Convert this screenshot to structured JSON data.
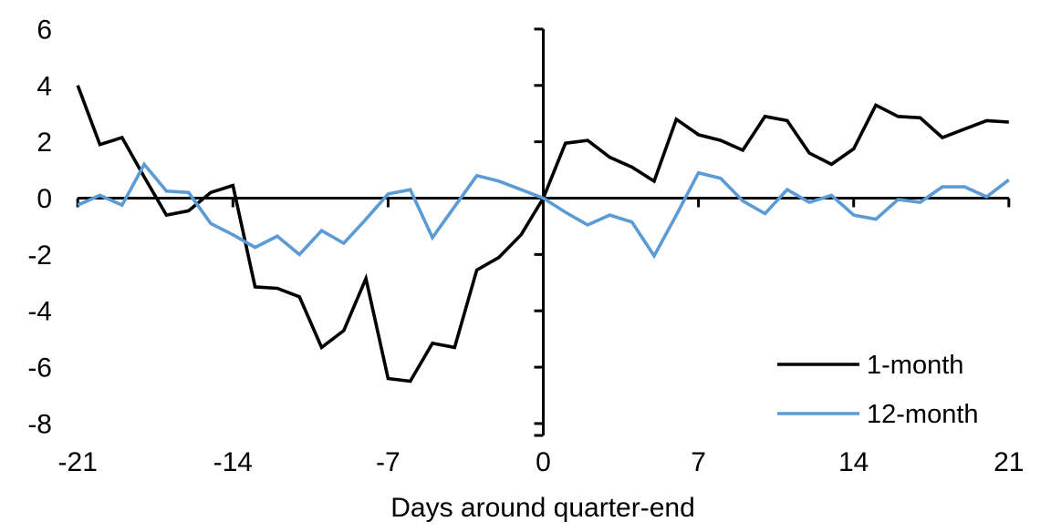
{
  "chart_data": {
    "type": "line",
    "title": "",
    "xlabel": "Days around quarter-end",
    "ylabel": "",
    "grid": false,
    "legend_position": "bottom-right",
    "xlim": [
      -21,
      21
    ],
    "ylim": [
      -8.4,
      6
    ],
    "x_ticks": [
      -21,
      -14,
      -7,
      0,
      7,
      14,
      21
    ],
    "y_ticks": [
      6,
      4,
      2,
      0,
      -2,
      -4,
      -6,
      -8
    ],
    "axis_color": "#000000",
    "x": [
      -21,
      -20,
      -19,
      -18,
      -17,
      -16,
      -15,
      -14,
      -13,
      -12,
      -11,
      -10,
      -9,
      -8,
      -7,
      -6,
      -5,
      -4,
      -3,
      -2,
      -1,
      0,
      1,
      2,
      3,
      4,
      5,
      6,
      7,
      8,
      9,
      10,
      11,
      12,
      13,
      14,
      15,
      16,
      17,
      18,
      19,
      20,
      21
    ],
    "series": [
      {
        "name": "1-month",
        "color": "#000000",
        "values": [
          4.0,
          1.9,
          2.15,
          0.75,
          -0.6,
          -0.45,
          0.2,
          0.45,
          -3.15,
          -3.2,
          -3.5,
          -5.3,
          -4.7,
          -2.85,
          -6.4,
          -6.5,
          -5.15,
          -5.3,
          -2.55,
          -2.1,
          -1.3,
          0.0,
          1.95,
          2.05,
          1.45,
          1.1,
          0.6,
          2.8,
          2.25,
          2.05,
          1.7,
          2.9,
          2.75,
          1.6,
          1.2,
          1.75,
          3.3,
          2.9,
          2.85,
          2.15,
          2.45,
          2.75,
          2.7
        ]
      },
      {
        "name": "12-month",
        "color": "#5B9BD5",
        "values": [
          -0.25,
          0.1,
          -0.25,
          1.2,
          0.25,
          0.2,
          -0.9,
          -1.3,
          -1.75,
          -1.35,
          -2.0,
          -1.15,
          -1.6,
          -0.75,
          0.15,
          0.3,
          -1.4,
          -0.3,
          0.8,
          0.6,
          0.3,
          0.0,
          -0.5,
          -0.95,
          -0.6,
          -0.85,
          -2.05,
          -0.6,
          0.9,
          0.7,
          -0.1,
          -0.55,
          0.3,
          -0.15,
          0.1,
          -0.6,
          -0.75,
          -0.05,
          -0.15,
          0.4,
          0.4,
          0.05,
          0.65
        ]
      }
    ]
  }
}
